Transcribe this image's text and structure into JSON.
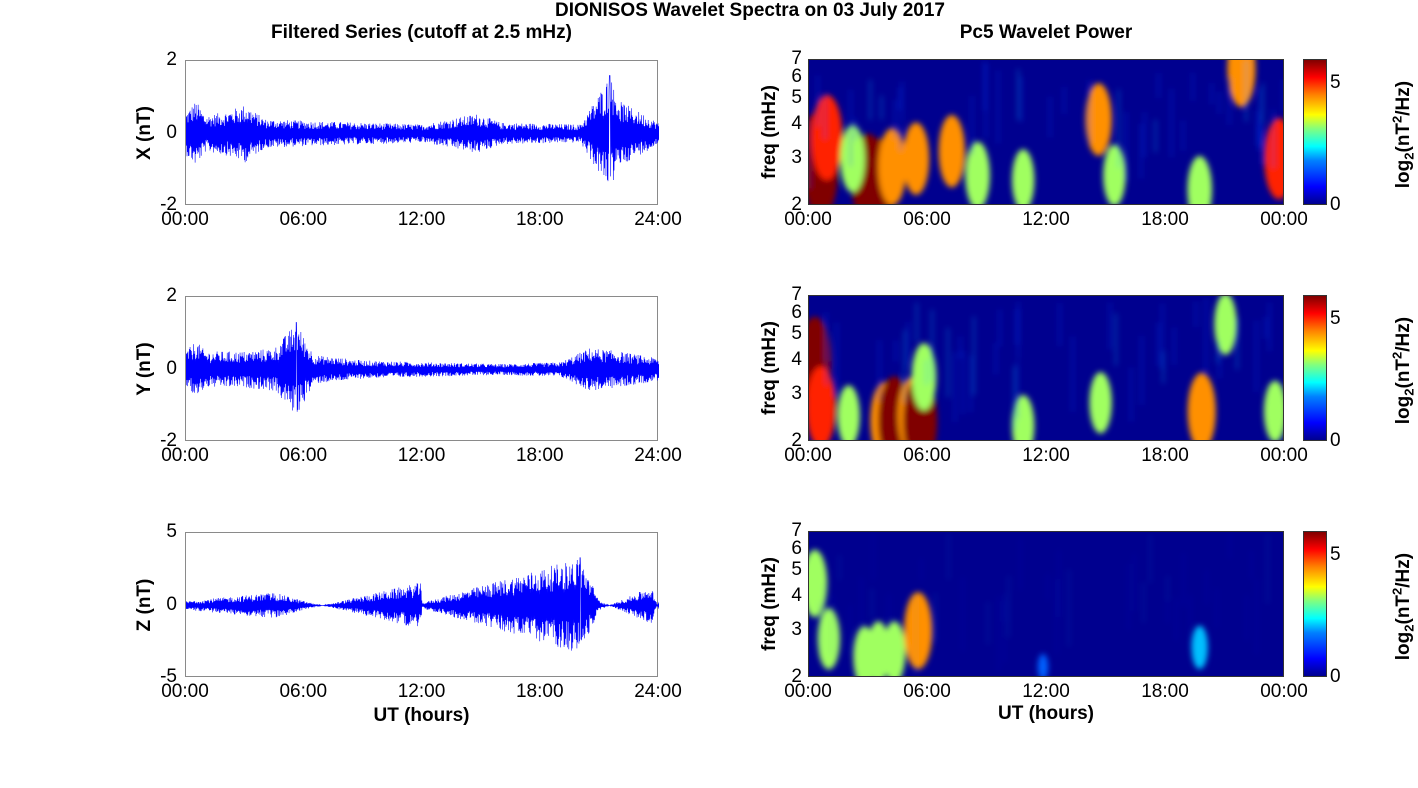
{
  "title": "DIONISOS Wavelet Spectra on 03 July 2017",
  "left_title": "Filtered Series (cutoff at 2.5 mHz)",
  "right_title": "Pc5 Wavelet Power",
  "colors": {
    "trace": "#0000ff",
    "background_map": "#00008f",
    "axis": "#8a8a8a"
  },
  "chart_data": [
    {
      "type": "line",
      "ylabel": "X (nT)",
      "ylim": [
        -2,
        2
      ],
      "yticks": [
        "2",
        "0",
        "-2"
      ],
      "xticks": [
        "00:00",
        "06:00",
        "12:00",
        "18:00",
        "24:00"
      ],
      "xlim_hours": [
        0,
        24
      ],
      "series": [
        {
          "amplitude_envelope_nT": [
            [
              0,
              0.6
            ],
            [
              0.5,
              0.9
            ],
            [
              1,
              0.5
            ],
            [
              2,
              0.6
            ],
            [
              3,
              0.8
            ],
            [
              4,
              0.4
            ],
            [
              6,
              0.35
            ],
            [
              9,
              0.3
            ],
            [
              12,
              0.25
            ],
            [
              14.8,
              0.55
            ],
            [
              16,
              0.3
            ],
            [
              20,
              0.25
            ],
            [
              21.5,
              1.6
            ],
            [
              22,
              0.9
            ],
            [
              24,
              0.3
            ]
          ]
        }
      ]
    },
    {
      "type": "line",
      "ylabel": "Y (nT)",
      "ylim": [
        -2,
        2
      ],
      "yticks": [
        "2",
        "0",
        "-2"
      ],
      "xticks": [
        "00:00",
        "06:00",
        "12:00",
        "18:00",
        "24:00"
      ],
      "xlim_hours": [
        0,
        24
      ],
      "series": [
        {
          "amplitude_envelope_nT": [
            [
              0,
              0.5
            ],
            [
              0.5,
              0.8
            ],
            [
              1,
              0.5
            ],
            [
              3,
              0.5
            ],
            [
              4.5,
              0.6
            ],
            [
              5.6,
              1.3
            ],
            [
              6.5,
              0.4
            ],
            [
              9,
              0.25
            ],
            [
              12,
              0.2
            ],
            [
              16,
              0.15
            ],
            [
              19,
              0.2
            ],
            [
              20.5,
              0.6
            ],
            [
              22,
              0.5
            ],
            [
              24,
              0.3
            ]
          ]
        }
      ]
    },
    {
      "type": "line",
      "ylabel": "Z (nT)",
      "ylim": [
        -5,
        5
      ],
      "yticks": [
        "5",
        "0",
        "-5"
      ],
      "xticks": [
        "00:00",
        "06:00",
        "12:00",
        "18:00",
        "24:00"
      ],
      "xlim_hours": [
        0,
        24
      ],
      "xlabel": "UT (hours)",
      "series": [
        {
          "amplitude_envelope_nT": [
            [
              0,
              0.3
            ],
            [
              4.5,
              0.9
            ],
            [
              6,
              0.3
            ],
            [
              11.9,
              -1.6
            ],
            [
              12,
              0.2
            ],
            [
              20,
              3.3
            ],
            [
              21,
              0.3
            ],
            [
              23.6,
              -1.3
            ],
            [
              24,
              0.3
            ]
          ]
        }
      ]
    },
    {
      "type": "heatmap",
      "ylabel": "freq (mHz)",
      "yticks": [
        "7",
        "6",
        "5",
        "4",
        "3",
        "2"
      ],
      "xticks": [
        "00:00",
        "06:00",
        "12:00",
        "18:00",
        "00:00"
      ],
      "colorbar_label": "log2(nT2/Hz)",
      "colorbar_ticks": [
        "5",
        "0"
      ],
      "clim": [
        0,
        6
      ],
      "blobs_hour_mHz_level": [
        [
          0.3,
          3.0,
          5.5
        ],
        [
          0.6,
          2.7,
          6
        ],
        [
          0.9,
          3.6,
          5
        ],
        [
          3.0,
          2.5,
          6
        ],
        [
          3.5,
          2.4,
          6
        ],
        [
          2.2,
          3.0,
          3
        ],
        [
          4.2,
          2.8,
          4
        ],
        [
          5.4,
          3.0,
          3.5
        ],
        [
          7.2,
          3.2,
          3.5
        ],
        [
          8.5,
          2.6,
          3
        ],
        [
          10.8,
          2.5,
          2.5
        ],
        [
          14.6,
          4.2,
          3.5
        ],
        [
          15.4,
          2.6,
          2.5
        ],
        [
          19.7,
          2.3,
          3
        ],
        [
          21.8,
          6.5,
          4
        ],
        [
          23.7,
          3.0,
          4.5
        ]
      ]
    },
    {
      "type": "heatmap",
      "ylabel": "freq (mHz)",
      "yticks": [
        "7",
        "6",
        "5",
        "4",
        "3",
        "2"
      ],
      "xticks": [
        "00:00",
        "06:00",
        "12:00",
        "18:00",
        "00:00"
      ],
      "colorbar_label": "log2(nT2/Hz)",
      "colorbar_ticks": [
        "5",
        "0"
      ],
      "clim": [
        0,
        6
      ],
      "blobs_hour_mHz_level": [
        [
          0.3,
          4.0,
          5.5
        ],
        [
          0.6,
          2.7,
          4.5
        ],
        [
          2.0,
          2.5,
          2.5
        ],
        [
          3.8,
          2.4,
          4
        ],
        [
          4.3,
          2.4,
          5.5
        ],
        [
          5.2,
          2.5,
          4
        ],
        [
          5.6,
          2.4,
          6
        ],
        [
          5.8,
          3.5,
          3
        ],
        [
          10.8,
          2.3,
          2.5
        ],
        [
          14.7,
          2.8,
          2.5
        ],
        [
          19.8,
          2.6,
          4
        ],
        [
          21.0,
          5.5,
          2.5
        ],
        [
          23.5,
          2.6,
          2.5
        ]
      ]
    },
    {
      "type": "heatmap",
      "ylabel": "freq (mHz)",
      "yticks": [
        "7",
        "6",
        "5",
        "4",
        "3",
        "2"
      ],
      "xticks": [
        "00:00",
        "06:00",
        "12:00",
        "18:00",
        "00:00"
      ],
      "xlabel": "UT (hours)",
      "colorbar_label": "log2(nT2/Hz)",
      "colorbar_ticks": [
        "5",
        "0"
      ],
      "clim": [
        0,
        6
      ],
      "blobs_hour_mHz_level": [
        [
          0.3,
          4.5,
          3
        ],
        [
          1.0,
          2.8,
          2.5
        ],
        [
          2.8,
          2.4,
          2.5
        ],
        [
          3.5,
          2.5,
          2.5
        ],
        [
          4.3,
          2.5,
          2.5
        ],
        [
          5.5,
          3.0,
          4
        ],
        [
          11.8,
          2.2,
          1
        ],
        [
          19.7,
          2.6,
          1.5
        ]
      ]
    }
  ]
}
